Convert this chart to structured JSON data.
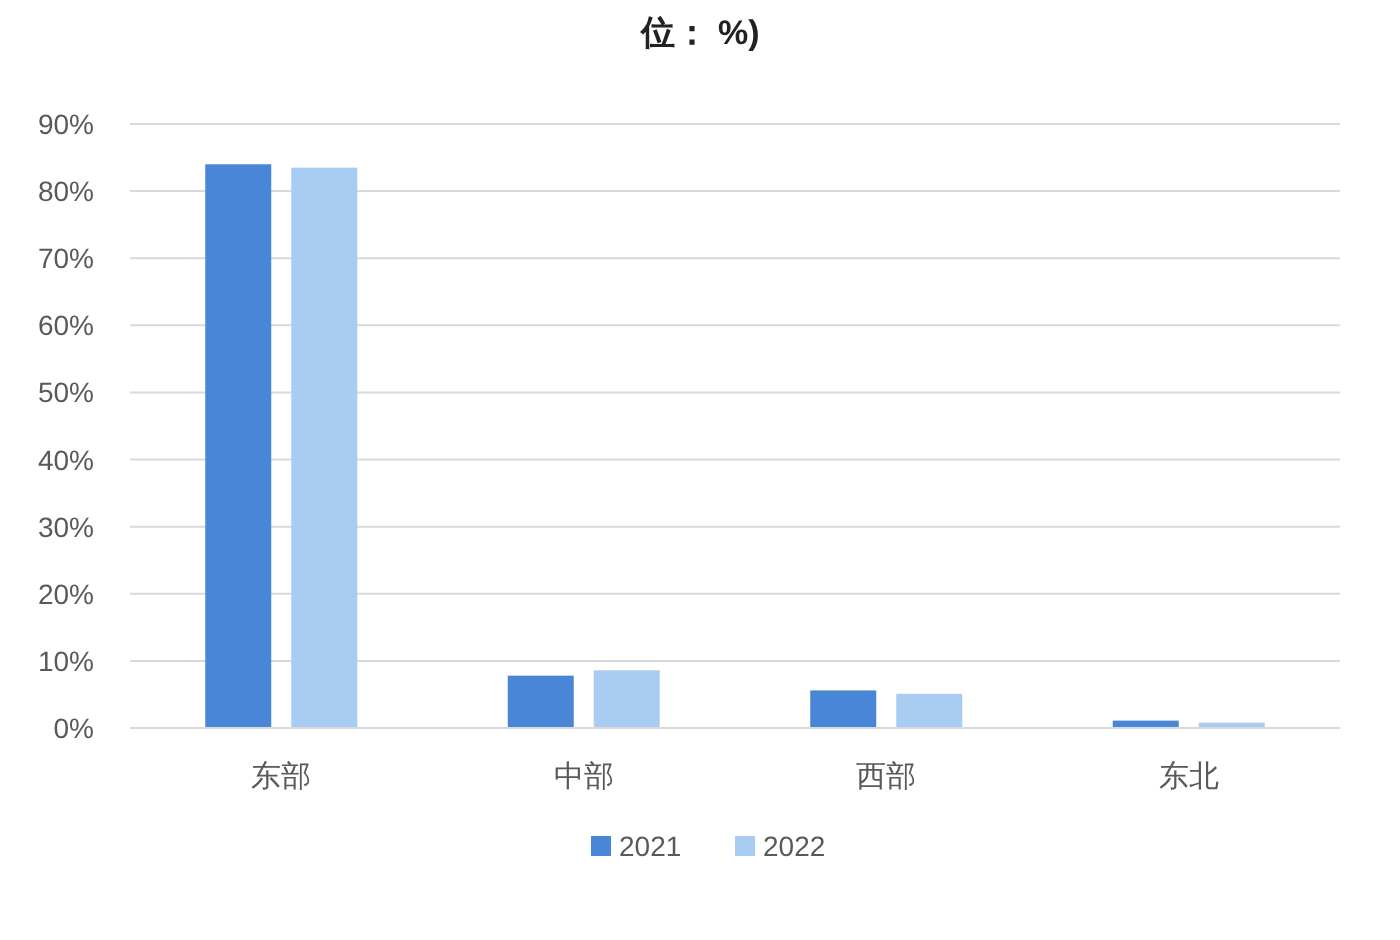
{
  "chart_data": {
    "type": "bar",
    "title": "位： %)",
    "categories": [
      "东部",
      "中部",
      "西部",
      "东北"
    ],
    "series": [
      {
        "name": "2021",
        "color": "#4a86d8",
        "values": [
          84,
          7.8,
          5.6,
          1.1
        ]
      },
      {
        "name": "2022",
        "color": "#a9ccf2",
        "values": [
          83.5,
          8.6,
          5.1,
          0.8
        ]
      }
    ],
    "ylim": [
      0,
      90
    ],
    "yticks": [
      {
        "value": 0,
        "label": "0%"
      },
      {
        "value": 10,
        "label": "10%"
      },
      {
        "value": 20,
        "label": "20%"
      },
      {
        "value": 30,
        "label": "30%"
      },
      {
        "value": 40,
        "label": "40%"
      },
      {
        "value": 50,
        "label": "50%"
      },
      {
        "value": 60,
        "label": "60%"
      },
      {
        "value": 70,
        "label": "70%"
      },
      {
        "value": 80,
        "label": "80%"
      },
      {
        "value": 90,
        "label": "90%"
      }
    ],
    "grid": "y",
    "legend": "bottom"
  }
}
